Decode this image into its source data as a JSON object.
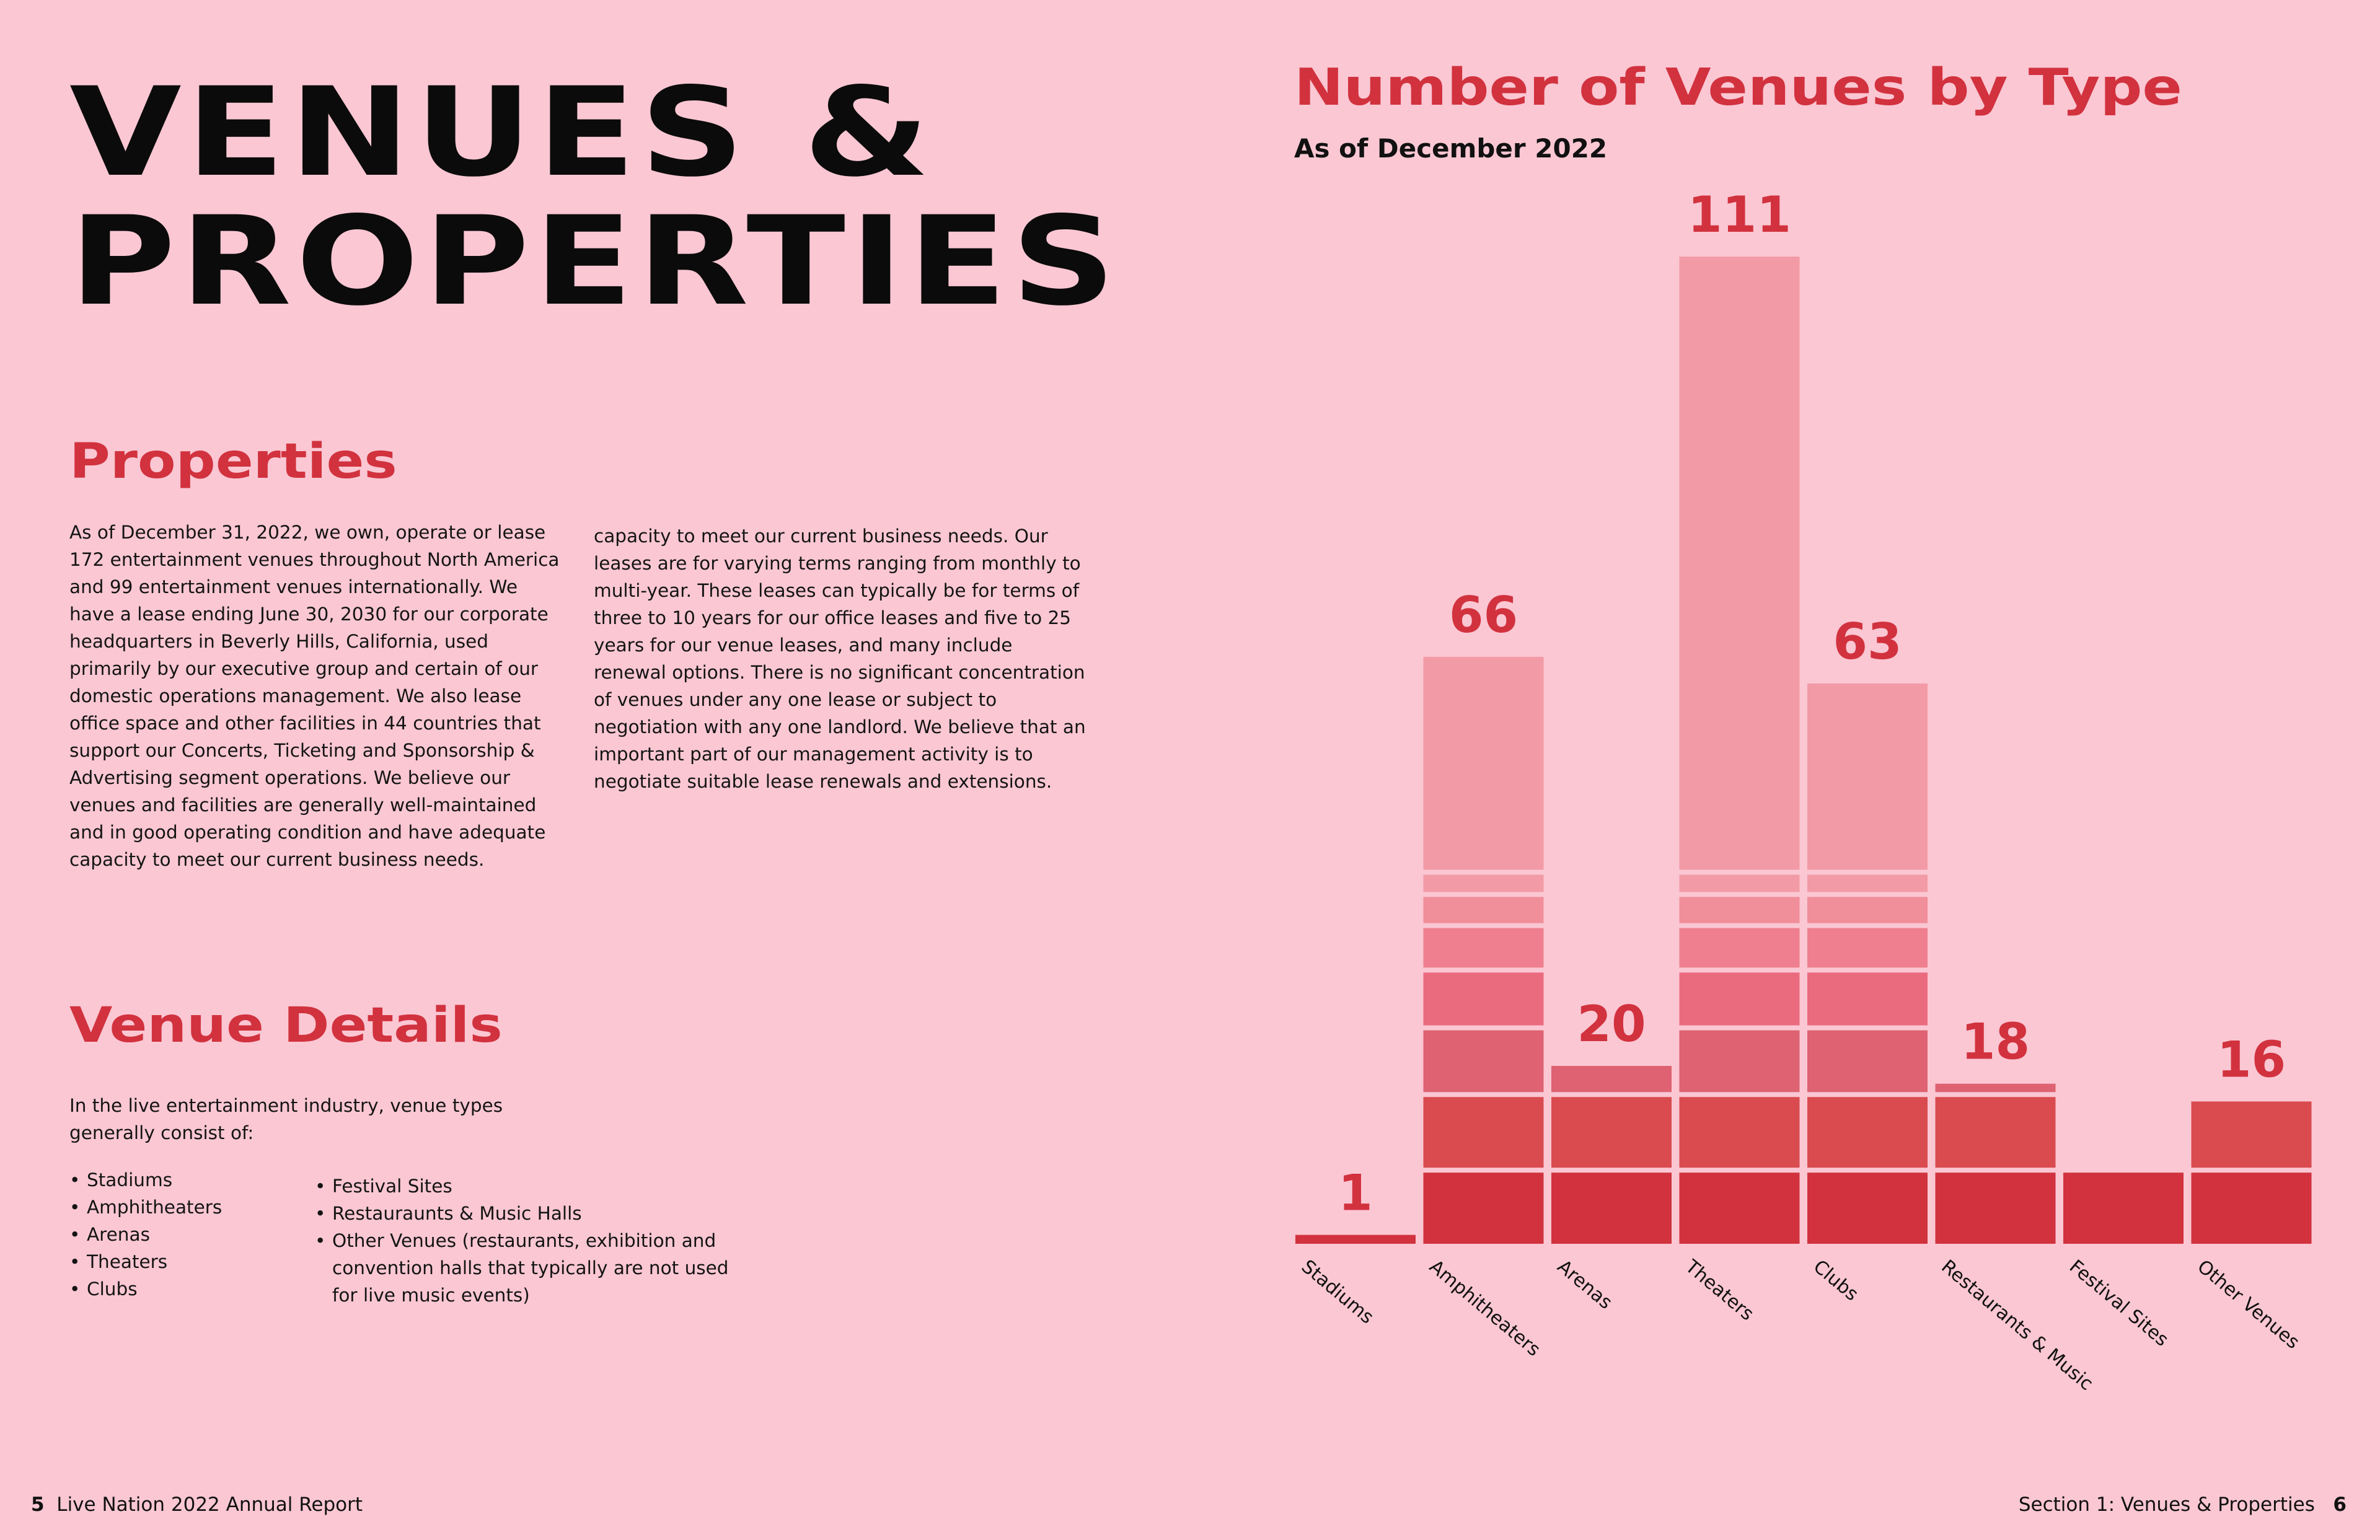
{
  "left_page": {
    "title_lines": [
      "VENUES &",
      "PROPERTIES"
    ],
    "properties": {
      "heading": "Properties",
      "paragraph_col1": "As of December 31, 2022, we own, operate or lease 172 entertainment venues throughout North America and 99 entertainment venues internationally. We have a lease ending June 30, 2030 for our corporate headquarters in Beverly Hills, California, used primarily by our executive group and certain of our domestic operations management. We also lease office space and other facilities in 44 countries that support our Concerts, Ticketing and Sponsorship & Advertising segment operations. We believe our venues and facilities are generally well-maintained and in good operating condition and have adequate capacity to meet our current business needs.",
      "paragraph_col2": "capacity to meet our current business needs. Our leases are for varying terms ranging from monthly to multi-year. These leases can typically be for terms of three to 10 years for our office leases and five to 25 years for our venue leases, and many include renewal options. There is no significant concentration of venues under any one lease or subject to negotiation with any one landlord. We believe that an important part of our management activity is to negotiate suitable lease renewals and extensions."
    },
    "venue_details": {
      "heading": "Venue Details",
      "intro": "In the live entertainment industry, venue types generally consist of:",
      "list_col1": [
        "Stadiums",
        "Amphitheaters",
        "Arenas",
        "Theaters",
        "Clubs"
      ],
      "list_col2": [
        "Festival Sites",
        "Restauraunts & Music Halls",
        "Other Venues (restaurants, exhibition and convention halls that typically are not used for live music events)"
      ]
    }
  },
  "chart_data": {
    "type": "bar",
    "title": "Number of Venues by Type",
    "subtitle": "As of December 2022",
    "categories": [
      "Stadiums",
      "Amphitheaters",
      "Arenas",
      "Theaters",
      "Clubs",
      "Restaurants & Music",
      "Festival Sites",
      "Other Venues"
    ],
    "values": [
      1,
      66,
      20,
      111,
      63,
      18,
      null,
      16
    ],
    "value_labels": [
      "1",
      "66",
      "20",
      "111",
      "63",
      "18",
      "",
      "16"
    ],
    "stack_colors": [
      "#d1323e",
      "#d94b4f",
      "#de6271",
      "#eb6b7e",
      "#ef7f8e",
      "#f08e99",
      "#f29aa5"
    ]
  },
  "footer": {
    "left_page_number": "5",
    "left_text": "Live Nation 2022 Annual Report",
    "right_text": "Section 1: Venues & Properties",
    "right_page_number": "6"
  }
}
